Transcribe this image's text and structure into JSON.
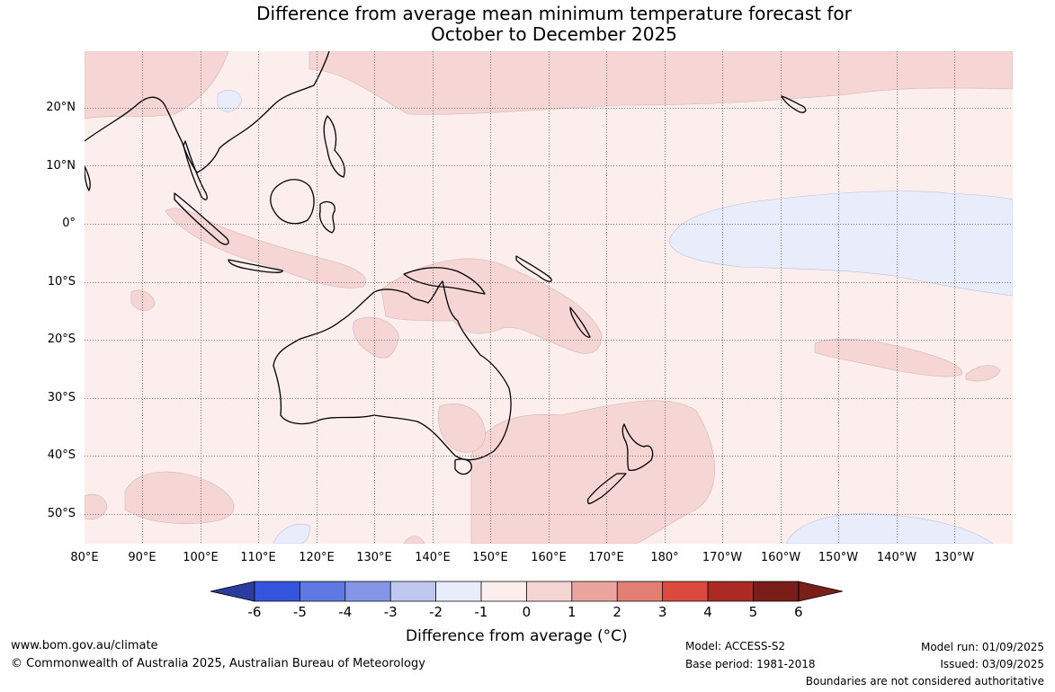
{
  "title_line1": "Difference from average mean minimum temperature forecast for",
  "title_line2": "October to December 2025",
  "lat_labels": [
    "20°N",
    "10°N",
    "0°",
    "10°S",
    "20°S",
    "30°S",
    "40°S",
    "50°S"
  ],
  "lon_labels": [
    "80°E",
    "90°E",
    "100°E",
    "110°E",
    "120°E",
    "130°E",
    "140°E",
    "150°E",
    "160°E",
    "170°E",
    "180°",
    "170°W",
    "160°W",
    "150°W",
    "140°W",
    "130°W"
  ],
  "colorbar": {
    "ticks": [
      "-6",
      "-5",
      "-4",
      "-3",
      "-2",
      "-1",
      "0",
      "1",
      "2",
      "3",
      "4",
      "5",
      "6"
    ],
    "colors": [
      "#2a3d9f",
      "#3555dc",
      "#5f79e2",
      "#8596e6",
      "#c0c8f0",
      "#e9ecfb",
      "#fbeeec",
      "#f5d6d4",
      "#eca49e",
      "#e37e75",
      "#dc4a3d",
      "#a92b24",
      "#7a1e1a"
    ],
    "label": "Difference from average (°C)"
  },
  "footer": {
    "website": "www.bom.gov.au/climate",
    "copyright": "© Commonwealth of Australia 2025, Australian Bureau of Meteorology",
    "model": "Model: ACCESS-S2",
    "base_period": "Base period: 1981-2018",
    "model_run": "Model run: 01/09/2025",
    "issued": "Issued: 03/09/2025",
    "disclaimer": "Boundaries are not considered authoritative"
  }
}
